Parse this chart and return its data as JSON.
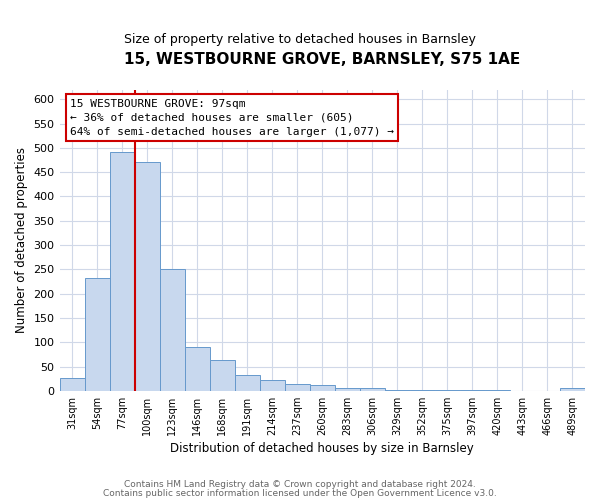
{
  "title": "15, WESTBOURNE GROVE, BARNSLEY, S75 1AE",
  "subtitle": "Size of property relative to detached houses in Barnsley",
  "xlabel": "Distribution of detached houses by size in Barnsley",
  "ylabel": "Number of detached properties",
  "bar_color": "#c8d8ee",
  "bar_edge_color": "#6699cc",
  "categories": [
    "31sqm",
    "54sqm",
    "77sqm",
    "100sqm",
    "123sqm",
    "146sqm",
    "168sqm",
    "191sqm",
    "214sqm",
    "237sqm",
    "260sqm",
    "283sqm",
    "306sqm",
    "329sqm",
    "352sqm",
    "375sqm",
    "397sqm",
    "420sqm",
    "443sqm",
    "466sqm",
    "489sqm"
  ],
  "values": [
    27,
    233,
    492,
    470,
    250,
    90,
    63,
    32,
    23,
    14,
    11,
    5,
    5,
    2,
    1,
    1,
    1,
    1,
    0,
    0,
    5
  ],
  "ylim": [
    0,
    620
  ],
  "yticks": [
    0,
    50,
    100,
    150,
    200,
    250,
    300,
    350,
    400,
    450,
    500,
    550,
    600
  ],
  "vline_color": "#cc0000",
  "vline_x_index": 3,
  "annotation_title": "15 WESTBOURNE GROVE: 97sqm",
  "annotation_line1": "← 36% of detached houses are smaller (605)",
  "annotation_line2": "64% of semi-detached houses are larger (1,077) →",
  "annotation_box_edgecolor": "#cc0000",
  "footer_line1": "Contains HM Land Registry data © Crown copyright and database right 2024.",
  "footer_line2": "Contains public sector information licensed under the Open Government Licence v3.0.",
  "background_color": "#ffffff",
  "plot_background": "#ffffff",
  "grid_color": "#d0d8e8"
}
